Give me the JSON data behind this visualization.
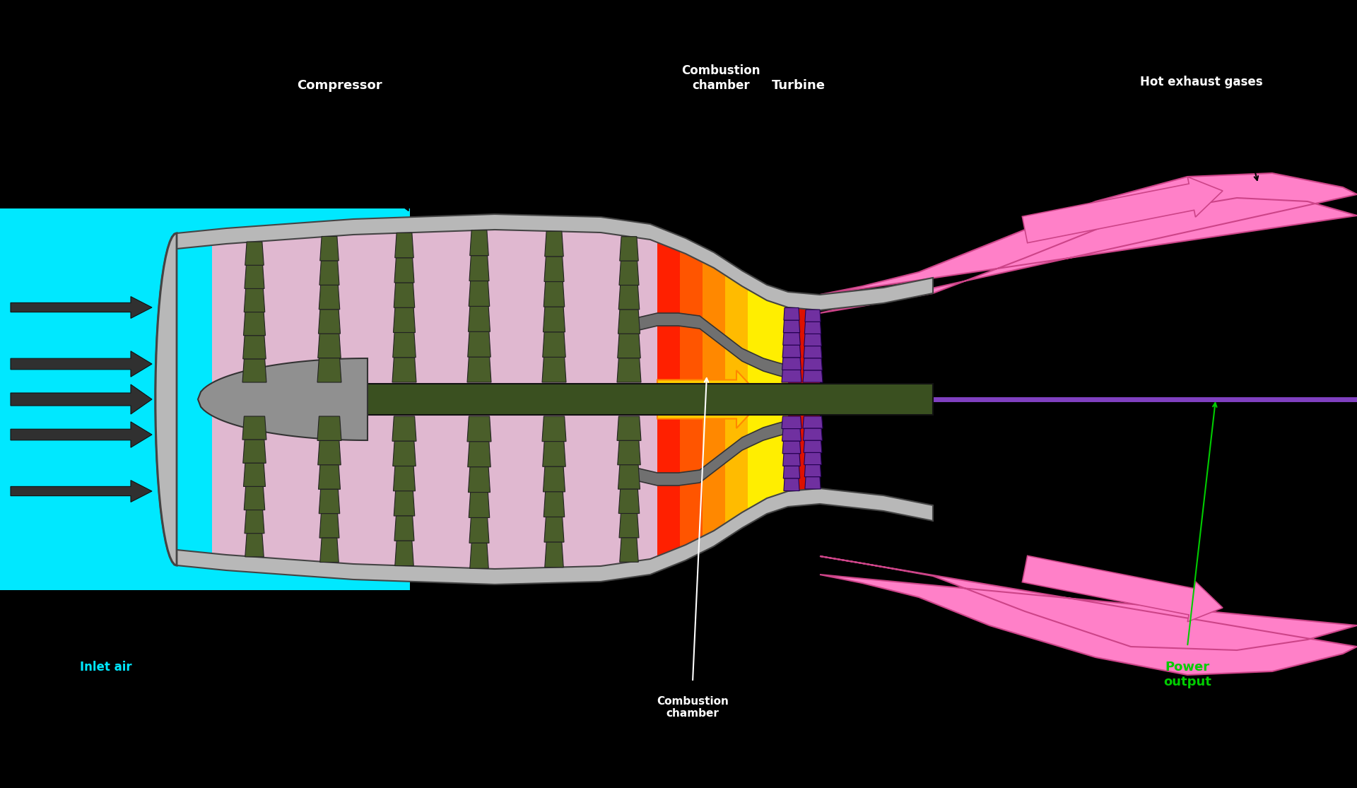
{
  "bg_color": "#000000",
  "cyan_bg": "#00e8ff",
  "casing_color": "#b8b8b8",
  "casing_edge": "#444444",
  "nacelle_color": "#909090",
  "shaft_color": "#3a5020",
  "compressor_blade_color": "#4a5e2a",
  "compressor_blade_edge": "#222222",
  "turbine_blade_color": "#7030a0",
  "turbine_blade_edge": "#220050",
  "exhaust_color": "#ff80c8",
  "exhaust_edge": "#cc4488",
  "power_shaft_color": "#8040c0",
  "inlet_arrow_color": "#333333",
  "pink_fill": "#ffb0d0",
  "yellow_fill": "#ffee00",
  "orange_fill": "#ff8800",
  "red_fill": "#ff2200",
  "combustion_arrow_color": "#ffcc00",
  "inner_structure_color": "#707070",
  "label_color": "#ffffff",
  "compressor_label": "Compressor",
  "combustion_label": "Combustion\nchamber",
  "turbine_label": "Turbine",
  "exhaust_label": "Hot exhaust gases",
  "power_label": "Power\noutput",
  "inlet_label": "Inlet air",
  "fig_width": 19.2,
  "fig_height": 11.15,
  "dpi": 100
}
